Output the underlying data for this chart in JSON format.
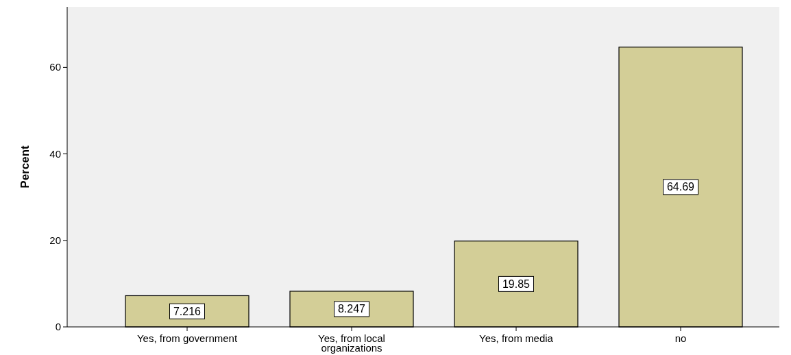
{
  "chart_data": {
    "type": "bar",
    "ylabel": "Percent",
    "categories": [
      "Yes, from government",
      "Yes, from local organizations",
      "Yes, from media",
      "no"
    ],
    "values": [
      7.216,
      8.247,
      19.85,
      64.69
    ],
    "color": "#d3ce97",
    "ylim": [
      0,
      74
    ],
    "yticks": [
      0,
      20,
      40,
      60
    ],
    "data_labels": true,
    "grid": false
  }
}
